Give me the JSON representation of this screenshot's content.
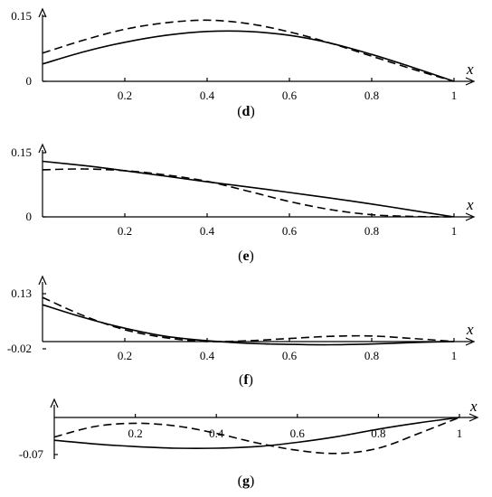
{
  "chart_data": [
    {
      "id": "d",
      "type": "line",
      "caption": [
        "(",
        "d",
        ")"
      ],
      "xlabel": "x",
      "xlim": [
        0,
        1.05
      ],
      "ylim": [
        -0.005,
        0.17
      ],
      "x_ticks": [
        "0.2",
        "0.4",
        "0.6",
        "0.8",
        "1"
      ],
      "y_ticks": [
        "0.15",
        "0"
      ],
      "x": [
        0,
        0.1,
        0.2,
        0.3,
        0.4,
        0.5,
        0.6,
        0.7,
        0.8,
        0.9,
        1.0
      ],
      "series": [
        {
          "style": "solid",
          "values": [
            0.04,
            0.068,
            0.09,
            0.106,
            0.115,
            0.115,
            0.106,
            0.088,
            0.062,
            0.032,
            0.0
          ]
        },
        {
          "style": "dashed",
          "values": [
            0.065,
            0.095,
            0.12,
            0.135,
            0.141,
            0.133,
            0.114,
            0.088,
            0.058,
            0.028,
            0.0
          ]
        }
      ]
    },
    {
      "id": "e",
      "type": "line",
      "caption": [
        "(",
        "e",
        ")"
      ],
      "xlabel": "x",
      "xlim": [
        0,
        1.05
      ],
      "ylim": [
        -0.005,
        0.17
      ],
      "x_ticks": [
        "0.2",
        "0.4",
        "0.6",
        "0.8",
        "1"
      ],
      "y_ticks": [
        "0.15",
        "0"
      ],
      "x": [
        0,
        0.1,
        0.2,
        0.3,
        0.4,
        0.5,
        0.6,
        0.7,
        0.8,
        0.9,
        1.0
      ],
      "series": [
        {
          "style": "solid",
          "values": [
            0.13,
            0.12,
            0.108,
            0.095,
            0.082,
            0.07,
            0.057,
            0.044,
            0.03,
            0.015,
            0.0
          ]
        },
        {
          "style": "dashed",
          "values": [
            0.11,
            0.112,
            0.108,
            0.098,
            0.083,
            0.06,
            0.036,
            0.017,
            0.005,
            0.001,
            0.0
          ]
        }
      ]
    },
    {
      "id": "f",
      "type": "line",
      "caption": [
        "(",
        "f",
        ")"
      ],
      "xlabel": "x",
      "xlim": [
        0,
        1.05
      ],
      "ylim": [
        -0.03,
        0.16
      ],
      "x_ticks": [
        "0.2",
        "0.4",
        "0.6",
        "0.8",
        "1"
      ],
      "y_ticks": [
        "0.13",
        "-0.02"
      ],
      "x": [
        0,
        0.1,
        0.2,
        0.3,
        0.4,
        0.5,
        0.6,
        0.7,
        0.8,
        0.9,
        1.0
      ],
      "series": [
        {
          "style": "solid",
          "values": [
            0.1,
            0.065,
            0.036,
            0.014,
            0.002,
            -0.005,
            -0.008,
            -0.009,
            -0.007,
            -0.003,
            0.0
          ]
        },
        {
          "style": "dashed",
          "values": [
            0.12,
            0.07,
            0.032,
            0.01,
            0.0,
            0.002,
            0.008,
            0.014,
            0.015,
            0.008,
            0.0
          ]
        }
      ]
    },
    {
      "id": "g",
      "type": "line",
      "caption": [
        "(",
        "g",
        ")"
      ],
      "xlabel": "x",
      "xlim": [
        0,
        1.05
      ],
      "ylim": [
        -0.1,
        0.035
      ],
      "x_ticks": [
        "0.2",
        "0.4",
        "0.6",
        "0.8",
        "1"
      ],
      "y_ticks": [
        "-0.07"
      ],
      "x": [
        0,
        0.1,
        0.2,
        0.3,
        0.4,
        0.5,
        0.6,
        0.7,
        0.8,
        0.9,
        1.0
      ],
      "series": [
        {
          "style": "solid",
          "values": [
            -0.043,
            -0.05,
            -0.055,
            -0.058,
            -0.058,
            -0.055,
            -0.047,
            -0.036,
            -0.022,
            -0.01,
            0.0
          ]
        },
        {
          "style": "dashed",
          "values": [
            -0.037,
            -0.017,
            -0.011,
            -0.016,
            -0.03,
            -0.048,
            -0.062,
            -0.068,
            -0.058,
            -0.03,
            0.0
          ]
        }
      ]
    }
  ]
}
